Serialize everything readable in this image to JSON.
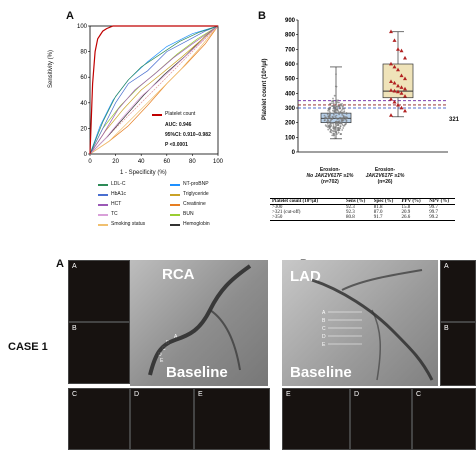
{
  "panelA": {
    "letter": "A",
    "ylabel": "Sensitivity (%)",
    "xlabel": "1 - Specificity (%)",
    "yticks": [
      "0",
      "20",
      "40",
      "60",
      "80",
      "100"
    ],
    "xticks": [
      "0",
      "20",
      "40",
      "60",
      "80",
      "100"
    ],
    "legend_inline": {
      "name": "Platelet count",
      "color": "#c00000"
    },
    "auc": "AUC: 0.946",
    "ci": "95%CI: 0.910–0.982",
    "p": "P <0.0001",
    "legend_left": [
      {
        "label": "LDL-C",
        "color": "#2e8b57"
      },
      {
        "label": "HbA1c",
        "color": "#4a6fd0"
      },
      {
        "label": "HCT",
        "color": "#9b59b6"
      },
      {
        "label": "TC",
        "color": "#d9a0d9"
      },
      {
        "label": "Smoking status",
        "color": "#f0c070"
      }
    ],
    "legend_right": [
      {
        "label": "NT-proBNP",
        "color": "#1e90ff"
      },
      {
        "label": "Triglyceride",
        "color": "#c9a227"
      },
      {
        "label": "Creatinine",
        "color": "#e67e22"
      },
      {
        "label": "BUN",
        "color": "#9acd32"
      },
      {
        "label": "Hemoglobin",
        "color": "#333333"
      }
    ]
  },
  "panelB": {
    "letter": "B",
    "ylabel": "Platelet count (10⁹/μl)",
    "yticks": [
      "0",
      "100",
      "200",
      "300",
      "400",
      "500",
      "600",
      "700",
      "800",
      "900"
    ],
    "threshold_label": "321",
    "group1": [
      "Erosion-",
      "No JAK2V617F ≥1%",
      "(n=702)"
    ],
    "group2": [
      "Erosion-",
      "JAK2V617F ≥1%",
      "(n=26)"
    ],
    "table": {
      "headers": [
        "Platelet count (10⁹/μl)",
        "Sens (%)",
        "Spec (%)",
        "PPV (%)",
        "NPV (%)"
      ],
      "rows": [
        [
          ">300",
          "92.3",
          "81.8",
          "15.8",
          "99.7"
        ],
        [
          ">321 (cut-off)",
          "92.3",
          "87.0",
          "20.9",
          "99.7"
        ],
        [
          ">350",
          "80.8",
          "91.7",
          "26.6",
          "99.2"
        ]
      ]
    }
  },
  "case": {
    "label": "CASE 1",
    "left": {
      "letter": "A",
      "vessel": "RCA",
      "state": "Baseline",
      "segments": [
        "A",
        "B",
        "C",
        "D",
        "E"
      ]
    },
    "right": {
      "letter": "B",
      "vessel": "LAD",
      "state": "Baseline",
      "segments": [
        "A",
        "B",
        "C",
        "D",
        "E"
      ]
    }
  },
  "chart_data": [
    {
      "type": "line",
      "title": "",
      "xlabel": "1 - Specificity (%)",
      "ylabel": "Sensitivity (%)",
      "xlim": [
        0,
        100
      ],
      "ylim": [
        0,
        100
      ],
      "series": [
        {
          "name": "Platelet count",
          "x": [
            0,
            2,
            4,
            6,
            8,
            10,
            13,
            18,
            25,
            100
          ],
          "y": [
            0,
            55,
            80,
            90,
            93,
            96,
            98,
            100,
            100,
            100
          ]
        },
        {
          "name": "LDL-C",
          "x": [
            0,
            10,
            20,
            30,
            40,
            55,
            70,
            85,
            100
          ],
          "y": [
            0,
            25,
            45,
            58,
            68,
            78,
            88,
            95,
            100
          ]
        },
        {
          "name": "HbA1c",
          "x": [
            0,
            10,
            20,
            30,
            45,
            60,
            75,
            90,
            100
          ],
          "y": [
            0,
            20,
            40,
            55,
            65,
            80,
            88,
            96,
            100
          ]
        },
        {
          "name": "HCT",
          "x": [
            0,
            10,
            22,
            35,
            50,
            65,
            80,
            100
          ],
          "y": [
            0,
            15,
            35,
            50,
            62,
            75,
            86,
            100
          ]
        },
        {
          "name": "TC",
          "x": [
            0,
            12,
            25,
            40,
            55,
            70,
            85,
            100
          ],
          "y": [
            0,
            12,
            28,
            45,
            58,
            72,
            86,
            100
          ]
        },
        {
          "name": "Smoking status",
          "x": [
            0,
            15,
            30,
            50,
            70,
            85,
            100
          ],
          "y": [
            0,
            10,
            25,
            45,
            65,
            82,
            100
          ]
        },
        {
          "name": "NT-proBNP",
          "x": [
            0,
            8,
            18,
            30,
            45,
            60,
            80,
            100
          ],
          "y": [
            0,
            22,
            42,
            58,
            72,
            84,
            94,
            100
          ]
        },
        {
          "name": "Triglyceride",
          "x": [
            0,
            12,
            26,
            40,
            55,
            72,
            88,
            100
          ],
          "y": [
            0,
            18,
            35,
            50,
            62,
            76,
            90,
            100
          ]
        },
        {
          "name": "Creatinine",
          "x": [
            0,
            15,
            30,
            45,
            60,
            75,
            90,
            100
          ],
          "y": [
            0,
            10,
            22,
            38,
            55,
            70,
            86,
            100
          ]
        },
        {
          "name": "BUN",
          "x": [
            0,
            10,
            24,
            38,
            52,
            68,
            84,
            100
          ],
          "y": [
            0,
            20,
            38,
            52,
            64,
            78,
            90,
            100
          ]
        },
        {
          "name": "Hemoglobin",
          "x": [
            0,
            14,
            28,
            42,
            58,
            74,
            90,
            100
          ],
          "y": [
            0,
            14,
            30,
            46,
            62,
            76,
            92,
            100
          ]
        }
      ],
      "reference_line": "diagonal"
    },
    {
      "type": "scatter",
      "ylabel": "Platelet count (10⁹/μl)",
      "ylim": [
        0,
        900
      ],
      "categories": [
        "Erosion-No JAK2V617F ≥1% (n=702)",
        "Erosion-JAK2V617F ≥1% (n=26)"
      ],
      "box": [
        {
          "q1": 200,
          "median": 230,
          "q3": 265,
          "whisker_low": 90,
          "whisker_high": 580
        },
        {
          "q1": 370,
          "median": 415,
          "q3": 600,
          "whisker_low": 240,
          "whisker_high": 820
        }
      ],
      "thresholds": [
        300,
        321,
        350
      ],
      "group2_points": [
        820,
        760,
        700,
        690,
        640,
        600,
        580,
        560,
        520,
        500,
        480,
        470,
        450,
        440,
        430,
        420,
        415,
        410,
        400,
        380,
        360,
        340,
        320,
        300,
        280,
        250
      ]
    }
  ]
}
